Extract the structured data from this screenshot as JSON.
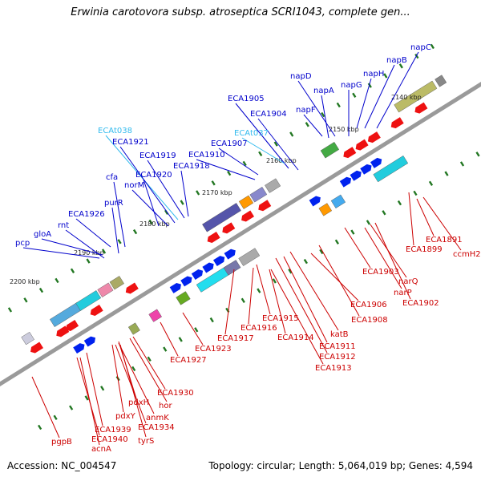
{
  "title": "Erwinia carotovora subsp. atroseptica SCRI1043, complete gen...",
  "footer": {
    "accession": "Accession: NC_004547",
    "summary": "Topology: circular; Length: 5,064,019 bp; Genes: 4,594"
  },
  "ruler_ticks": [
    "2140 kbp",
    "2150 kbp",
    "2160 kbp",
    "2170 kbp",
    "2180 kbp",
    "2190 kbp",
    "2200 kbp"
  ],
  "colors": {
    "blue_label": "#0000cc",
    "red_label": "#cc0000",
    "cyan_label": "#33bbee",
    "backbone": "#888888",
    "dot_green": "#227722"
  },
  "top_labels": [
    {
      "text": "napC",
      "color": "blue"
    },
    {
      "text": "napB",
      "color": "blue"
    },
    {
      "text": "napH",
      "color": "blue"
    },
    {
      "text": "napG",
      "color": "blue"
    },
    {
      "text": "napD",
      "color": "blue"
    },
    {
      "text": "napA",
      "color": "blue"
    },
    {
      "text": "napF",
      "color": "blue"
    },
    {
      "text": "ECA1905",
      "color": "blue"
    },
    {
      "text": "ECA1904",
      "color": "blue"
    },
    {
      "text": "ECAt038",
      "color": "cyan"
    },
    {
      "text": "ECAt037",
      "color": "cyan"
    },
    {
      "text": "ECA1921",
      "color": "blue"
    },
    {
      "text": "ECA1907",
      "color": "blue"
    },
    {
      "text": "ECA1919",
      "color": "blue"
    },
    {
      "text": "ECA1910",
      "color": "blue"
    },
    {
      "text": "ECA1918",
      "color": "blue"
    },
    {
      "text": "cfa",
      "color": "blue"
    },
    {
      "text": "ECA1920",
      "color": "blue"
    },
    {
      "text": "norM",
      "color": "blue"
    },
    {
      "text": "purR",
      "color": "blue"
    },
    {
      "text": "ECA1926",
      "color": "blue"
    },
    {
      "text": "rnt",
      "color": "blue"
    },
    {
      "text": "gloA",
      "color": "blue"
    },
    {
      "text": "pcp",
      "color": "blue"
    }
  ],
  "bottom_labels": [
    {
      "text": "ECA1891"
    },
    {
      "text": "ECA1899"
    },
    {
      "text": "ccmH2"
    },
    {
      "text": "ECA1903"
    },
    {
      "text": "narQ"
    },
    {
      "text": "narP"
    },
    {
      "text": "ECA1902"
    },
    {
      "text": "ECA1906"
    },
    {
      "text": "ECA1908"
    },
    {
      "text": "ECA1915"
    },
    {
      "text": "ECA1916"
    },
    {
      "text": "ECA1917"
    },
    {
      "text": "ECA1914"
    },
    {
      "text": "katB"
    },
    {
      "text": "ECA1911"
    },
    {
      "text": "ECA1912"
    },
    {
      "text": "ECA1913"
    },
    {
      "text": "ECA1923"
    },
    {
      "text": "ECA1927"
    },
    {
      "text": "ECA1930"
    },
    {
      "text": "hor"
    },
    {
      "text": "anmK"
    },
    {
      "text": "ECA1934"
    },
    {
      "text": "pdxH"
    },
    {
      "text": "pdxY"
    },
    {
      "text": "tyrS"
    },
    {
      "text": "ECA1939"
    },
    {
      "text": "ECA1940"
    },
    {
      "text": "acnA"
    },
    {
      "text": "pgpB"
    }
  ]
}
